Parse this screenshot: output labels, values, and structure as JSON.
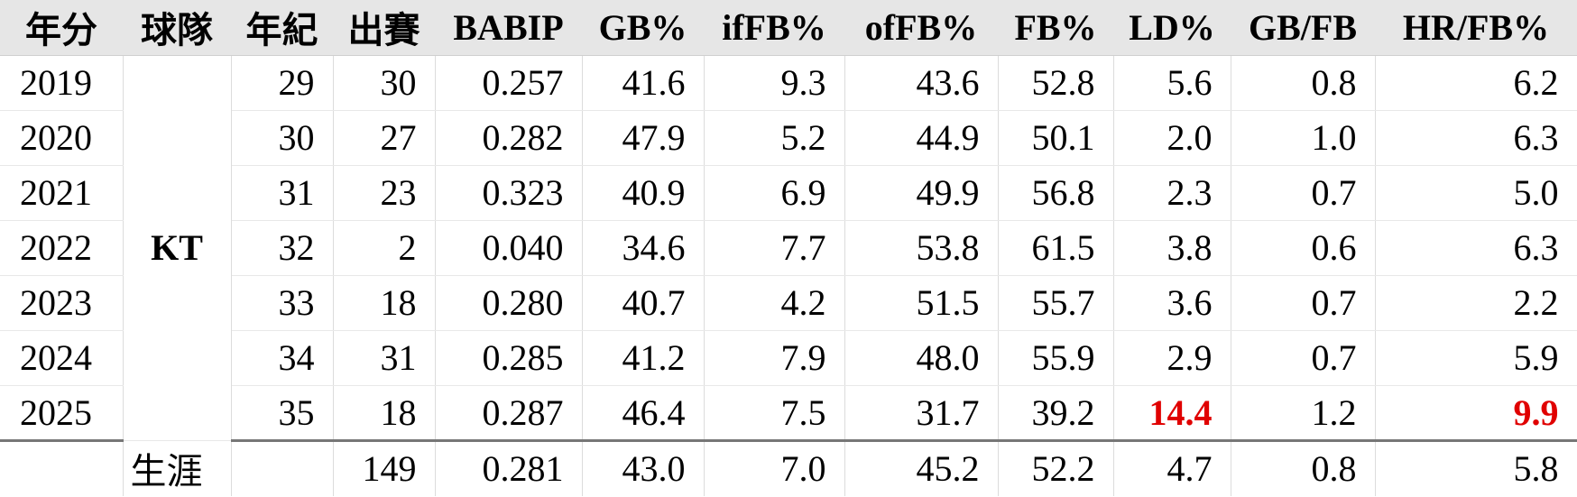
{
  "headers": [
    "年分",
    "球隊",
    "年紀",
    "出賽",
    "BABIP",
    "GB%",
    "ifFB%",
    "ofFB%",
    "FB%",
    "LD%",
    "GB/FB",
    "HR/FB%"
  ],
  "team": "KT",
  "rows": [
    {
      "year": "2019",
      "age": "29",
      "g": "30",
      "babip": "0.257",
      "gb": "41.6",
      "iffb": "9.3",
      "offb": "43.6",
      "fb": "52.8",
      "ld": "5.6",
      "gbfb": "0.8",
      "hrfb": "6.2"
    },
    {
      "year": "2020",
      "age": "30",
      "g": "27",
      "babip": "0.282",
      "gb": "47.9",
      "iffb": "5.2",
      "offb": "44.9",
      "fb": "50.1",
      "ld": "2.0",
      "gbfb": "1.0",
      "hrfb": "6.3"
    },
    {
      "year": "2021",
      "age": "31",
      "g": "23",
      "babip": "0.323",
      "gb": "40.9",
      "iffb": "6.9",
      "offb": "49.9",
      "fb": "56.8",
      "ld": "2.3",
      "gbfb": "0.7",
      "hrfb": "5.0"
    },
    {
      "year": "2022",
      "age": "32",
      "g": "2",
      "babip": "0.040",
      "gb": "34.6",
      "iffb": "7.7",
      "offb": "53.8",
      "fb": "61.5",
      "ld": "3.8",
      "gbfb": "0.6",
      "hrfb": "6.3"
    },
    {
      "year": "2023",
      "age": "33",
      "g": "18",
      "babip": "0.280",
      "gb": "40.7",
      "iffb": "4.2",
      "offb": "51.5",
      "fb": "55.7",
      "ld": "3.6",
      "gbfb": "0.7",
      "hrfb": "2.2"
    },
    {
      "year": "2024",
      "age": "34",
      "g": "31",
      "babip": "0.285",
      "gb": "41.2",
      "iffb": "7.9",
      "offb": "48.0",
      "fb": "55.9",
      "ld": "2.9",
      "gbfb": "0.7",
      "hrfb": "5.9"
    },
    {
      "year": "2025",
      "age": "35",
      "g": "18",
      "babip": "0.287",
      "gb": "46.4",
      "iffb": "7.5",
      "offb": "31.7",
      "fb": "39.2",
      "ld": "14.4",
      "gbfb": "1.2",
      "hrfb": "9.9"
    }
  ],
  "career": {
    "label": "生涯",
    "g": "149",
    "babip": "0.281",
    "gb": "43.0",
    "iffb": "7.0",
    "offb": "45.2",
    "fb": "52.2",
    "ld": "4.7",
    "gbfb": "0.8",
    "hrfb": "5.8"
  },
  "colors": {
    "highlight": "#e00000",
    "header_bg": "#e6e6e6"
  }
}
